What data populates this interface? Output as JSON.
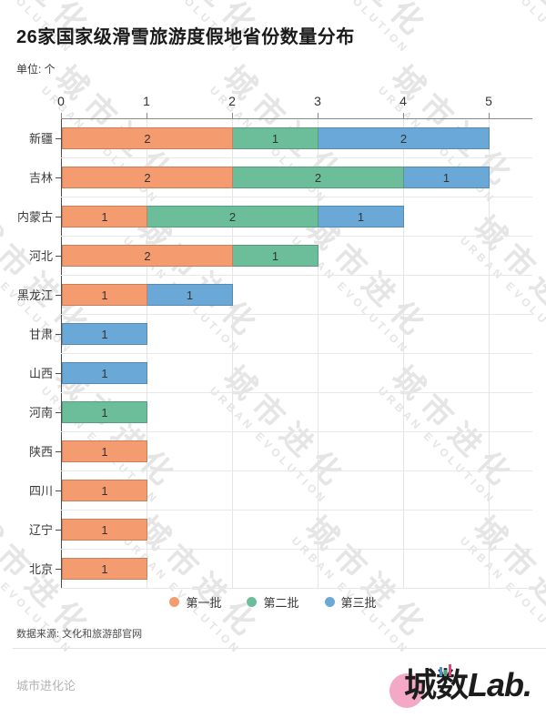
{
  "header": {
    "title": "26家国家级滑雪旅游度假地省份数量分布",
    "unit_label": "单位: 个"
  },
  "chart_data": {
    "type": "bar",
    "orientation": "horizontal",
    "stacked": true,
    "title": "26家国家级滑雪旅游度假地省份数量分布",
    "unit": "个",
    "categories": [
      "新疆",
      "吉林",
      "内蒙古",
      "河北",
      "黑龙江",
      "甘肃",
      "山西",
      "河南",
      "陕西",
      "四川",
      "辽宁",
      "北京"
    ],
    "series": [
      {
        "name": "第一批",
        "color": "#F49B70",
        "values": [
          2,
          2,
          1,
          2,
          1,
          0,
          0,
          0,
          1,
          1,
          1,
          1
        ]
      },
      {
        "name": "第二批",
        "color": "#6CBE9B",
        "values": [
          1,
          2,
          2,
          1,
          0,
          0,
          0,
          1,
          0,
          0,
          0,
          0
        ]
      },
      {
        "name": "第三批",
        "color": "#6AA9D7",
        "values": [
          2,
          1,
          1,
          0,
          1,
          1,
          1,
          0,
          0,
          0,
          0,
          0
        ]
      }
    ],
    "totals": [
      5,
      5,
      4,
      3,
      2,
      1,
      1,
      1,
      1,
      1,
      1,
      1
    ],
    "xlim": [
      0,
      5
    ],
    "x_tick_labels": [
      "0",
      "1",
      "2",
      "3",
      "4",
      "5"
    ],
    "grid": true,
    "legend_position": "bottom",
    "value_labels_shown_inside_segments": true
  },
  "legend": {
    "items": [
      {
        "label": "第一批",
        "color": "#F49B70"
      },
      {
        "label": "第二批",
        "color": "#6CBE9B"
      },
      {
        "label": "第三批",
        "color": "#6AA9D7"
      }
    ]
  },
  "footer": {
    "source": "数据来源: 文化和旅游部官网",
    "brand_left": "城市进化论",
    "logo": {
      "text_cjk": "城数",
      "text_latin": "Lab.",
      "circle_color": "#f3a8c6"
    }
  },
  "watermark": {
    "cjk": "城市进化",
    "latin": "URBAN EVOLUTION"
  },
  "colors": {
    "background": "#ffffff",
    "title_text": "#1a1a1a",
    "axis_line": "#8a8a8a",
    "gridline": "#e5e5e5",
    "bar_value_text": "#333333"
  }
}
